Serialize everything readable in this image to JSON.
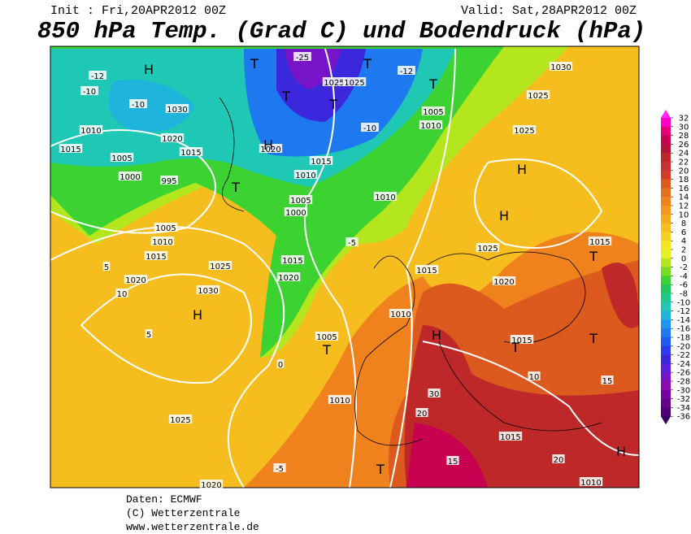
{
  "header": {
    "init": "Init : Fri,20APR2012 00Z",
    "valid": "Valid: Sat,28APR2012 00Z",
    "title": "850 hPa Temp. (Grad C) und Bodendruck (hPa)"
  },
  "colorbar": {
    "values": [
      32,
      30,
      28,
      26,
      24,
      22,
      20,
      18,
      16,
      14,
      12,
      10,
      8,
      6,
      4,
      2,
      0,
      -2,
      -4,
      -6,
      -8,
      -10,
      -12,
      -14,
      -16,
      -18,
      -20,
      -22,
      -24,
      -26,
      -28,
      -30,
      -32,
      -34,
      -36
    ],
    "colors": [
      "#ff28ff",
      "#ff00c8",
      "#e6007a",
      "#c80050",
      "#b4143c",
      "#be2828",
      "#c83232",
      "#d23c28",
      "#dc5a1e",
      "#e66e1e",
      "#f0821e",
      "#f5961e",
      "#f5aa1e",
      "#f5be1e",
      "#f5d21e",
      "#f5e61e",
      "#e6f01e",
      "#b4e61e",
      "#78dc1e",
      "#3cd232",
      "#1ec85a",
      "#1ec88c",
      "#1ec8b4",
      "#1eb4dc",
      "#1e96f0",
      "#1e78f0",
      "#1e5af0",
      "#2d3cf0",
      "#3c28dc",
      "#5a1edc",
      "#7814c8",
      "#8c0ab4",
      "#7800a0",
      "#64008c",
      "#500078",
      "#3c0064"
    ]
  },
  "map": {
    "labels": [
      "H",
      "T",
      "-25",
      "T",
      "-12",
      "-10",
      "-10",
      "1030",
      "T",
      "1025",
      "1025",
      "T",
      "-10",
      "1005",
      "1010",
      "T",
      "-12",
      "1025",
      "1030",
      "1025",
      "H",
      "H",
      "1025",
      "1015",
      "T",
      "1020",
      "1015",
      "H",
      "T",
      "1005",
      "1010",
      "1025",
      "H",
      "1030",
      "1025",
      "1020",
      "1015",
      "1010",
      "1005",
      "1000",
      "995",
      "1015",
      "1010",
      "1005",
      "1020",
      "1015",
      "T",
      "1020",
      "H",
      "1015",
      "1010",
      "1005",
      "1000",
      "1015",
      "1020",
      "1010",
      "1015",
      "T",
      "T",
      "20",
      "15",
      "T",
      "H",
      "1010",
      "1015",
      "10",
      "15",
      "30",
      "20",
      "1010",
      "-5",
      "10",
      "5",
      "5",
      "0",
      "-5",
      "1020"
    ]
  },
  "footer": {
    "source": "Daten: ECMWF",
    "copyright": "(C) Wetterzentrale",
    "url": "www.wetterzentrale.de"
  }
}
